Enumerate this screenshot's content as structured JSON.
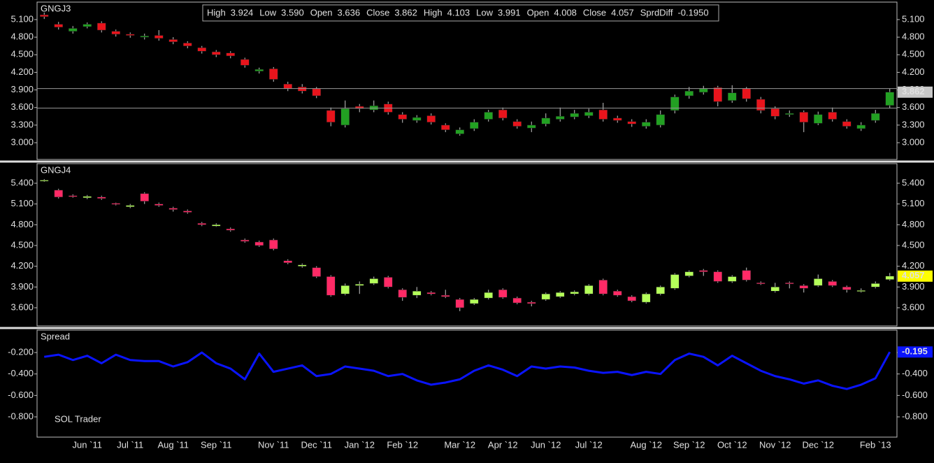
{
  "header": [
    {
      "name": "High",
      "value": 3.924,
      "color": "#d8d8d8"
    },
    {
      "name": "Low",
      "value": {
        "value": 3.59,
        "label": "3.590"
      },
      "color": "#d8d8d8"
    },
    {
      "name": "Open",
      "value": 3.636,
      "color": "#d8d8d8"
    },
    {
      "name": "Close",
      "value": 3.862,
      "color": "#d8d8d8"
    },
    {
      "name": "High",
      "value": 4.103,
      "color": "#ffff33"
    },
    {
      "name": "Low",
      "value": 3.991,
      "color": "#ffff33"
    },
    {
      "name": "Open",
      "value": 4.008,
      "color": "#ffff33"
    },
    {
      "name": "Close",
      "value": 4.057,
      "color": "#ffff33"
    },
    {
      "name": "SprdDiff",
      "value": {
        "value": -0.195,
        "label": "-0.1950"
      },
      "color": "#2233ff"
    }
  ],
  "chart_data": [
    {
      "type": "candlestick",
      "title": "GNGJ3",
      "open": [
        5.18,
        5.02,
        4.9,
        4.98,
        5.04,
        4.9,
        4.85,
        4.8,
        4.83,
        4.76,
        4.7,
        4.62,
        4.55,
        4.53,
        4.42,
        4.22,
        4.26,
        4.0,
        3.95,
        3.92,
        3.55,
        3.3,
        3.62,
        3.56,
        3.66,
        3.48,
        3.38,
        3.46,
        3.3,
        3.15,
        3.24,
        3.4,
        3.56,
        3.36,
        3.25,
        3.32,
        3.4,
        3.44,
        3.46,
        3.56,
        3.42,
        3.36,
        3.28,
        3.3,
        3.55,
        3.8,
        3.86,
        3.94,
        3.72,
        3.92,
        3.74,
        3.58,
        3.48,
        3.52,
        3.33,
        3.52,
        3.36,
        3.24,
        3.38,
        3.636
      ],
      "high": [
        5.22,
        5.06,
        4.99,
        5.05,
        5.07,
        4.93,
        4.88,
        4.86,
        4.92,
        4.8,
        4.73,
        4.65,
        4.58,
        4.56,
        4.45,
        4.28,
        4.29,
        4.04,
        4.0,
        3.95,
        3.6,
        3.72,
        3.66,
        3.72,
        3.7,
        3.52,
        3.47,
        3.5,
        3.33,
        3.26,
        3.4,
        3.56,
        3.6,
        3.4,
        3.36,
        3.5,
        3.6,
        3.56,
        3.58,
        3.68,
        3.46,
        3.4,
        3.4,
        3.55,
        3.82,
        3.95,
        3.97,
        3.97,
        3.98,
        3.95,
        3.78,
        3.62,
        3.55,
        3.55,
        3.53,
        3.6,
        3.4,
        3.35,
        3.56,
        3.924
      ],
      "low": [
        5.11,
        4.93,
        4.86,
        4.95,
        4.88,
        4.81,
        4.79,
        4.76,
        4.74,
        4.68,
        4.61,
        4.52,
        4.46,
        4.44,
        4.28,
        4.18,
        4.04,
        3.88,
        3.84,
        3.76,
        3.28,
        3.26,
        3.52,
        3.52,
        3.48,
        3.34,
        3.34,
        3.31,
        3.18,
        3.12,
        3.2,
        3.36,
        3.38,
        3.24,
        3.18,
        3.28,
        3.36,
        3.4,
        3.42,
        3.36,
        3.34,
        3.27,
        3.24,
        3.26,
        3.5,
        3.75,
        3.82,
        3.62,
        3.68,
        3.7,
        3.5,
        3.4,
        3.44,
        3.18,
        3.3,
        3.36,
        3.24,
        3.2,
        3.34,
        3.59
      ],
      "close": [
        5.15,
        4.97,
        4.95,
        5.02,
        4.92,
        4.85,
        4.83,
        4.82,
        4.78,
        4.72,
        4.65,
        4.56,
        4.5,
        4.48,
        4.32,
        4.25,
        4.08,
        3.92,
        3.88,
        3.8,
        3.35,
        3.58,
        3.58,
        3.63,
        3.52,
        3.4,
        3.43,
        3.35,
        3.22,
        3.22,
        3.35,
        3.52,
        3.42,
        3.28,
        3.3,
        3.42,
        3.45,
        3.5,
        3.52,
        3.4,
        3.38,
        3.32,
        3.35,
        3.48,
        3.78,
        3.88,
        3.92,
        3.7,
        3.85,
        3.75,
        3.55,
        3.45,
        3.5,
        3.35,
        3.48,
        3.4,
        3.28,
        3.3,
        3.5,
        3.862
      ],
      "up_color": "#22a022",
      "down_color": "#e8141c",
      "wick_color": "#c8c8c8",
      "range_lines": true,
      "last_label_fill": "#c8c8c8",
      "last_label_color": "#ff0000",
      "ylim": [
        2.714,
        5.398
      ],
      "yticks": [
        {
          "value": 3.0,
          "label": "3.000"
        },
        {
          "value": 3.3,
          "label": "3.300"
        },
        {
          "value": 3.6,
          "label": "3.600"
        },
        {
          "value": 3.9,
          "label": "3.900"
        },
        {
          "value": 4.2,
          "label": "4.200"
        },
        {
          "value": 4.5,
          "label": "4.500"
        },
        {
          "value": 4.8,
          "label": "4.800"
        },
        {
          "value": 5.1,
          "label": "5.100"
        }
      ]
    },
    {
      "type": "candlestick",
      "title": "GNGJ4",
      "open": [
        5.44,
        5.3,
        5.22,
        5.19,
        5.2,
        5.11,
        5.06,
        5.25,
        5.1,
        5.04,
        5.0,
        4.82,
        4.78,
        4.74,
        4.58,
        4.55,
        4.58,
        4.28,
        4.2,
        4.18,
        4.05,
        3.8,
        3.92,
        3.95,
        4.04,
        3.86,
        3.78,
        3.82,
        3.78,
        3.72,
        3.66,
        3.74,
        3.86,
        3.74,
        3.68,
        3.72,
        3.76,
        3.8,
        3.8,
        4.0,
        3.84,
        3.76,
        3.68,
        3.8,
        3.88,
        4.06,
        4.14,
        4.12,
        3.98,
        4.14,
        3.96,
        3.84,
        3.96,
        3.92,
        3.92,
        3.98,
        3.9,
        3.84,
        3.9,
        4.008
      ],
      "high": [
        5.46,
        5.32,
        5.24,
        5.23,
        5.22,
        5.12,
        5.1,
        5.27,
        5.12,
        5.06,
        5.02,
        4.84,
        4.82,
        4.76,
        4.6,
        4.57,
        4.6,
        4.3,
        4.24,
        4.2,
        4.07,
        3.95,
        3.98,
        4.05,
        4.06,
        3.88,
        3.9,
        3.84,
        3.86,
        3.74,
        3.74,
        3.86,
        3.88,
        3.76,
        3.7,
        3.82,
        3.84,
        3.85,
        3.94,
        4.02,
        3.86,
        3.78,
        3.82,
        3.92,
        4.1,
        4.14,
        4.16,
        4.14,
        4.07,
        4.18,
        3.98,
        3.96,
        3.98,
        3.94,
        4.08,
        4.0,
        3.92,
        3.88,
        3.98,
        4.103
      ],
      "low": [
        5.42,
        5.18,
        5.19,
        5.17,
        5.16,
        5.08,
        5.04,
        5.1,
        5.06,
        4.99,
        4.96,
        4.78,
        4.77,
        4.7,
        4.54,
        4.48,
        4.43,
        4.23,
        4.18,
        4.03,
        3.76,
        3.78,
        3.8,
        3.93,
        3.88,
        3.7,
        3.74,
        3.78,
        3.74,
        3.55,
        3.64,
        3.72,
        3.73,
        3.65,
        3.62,
        3.7,
        3.74,
        3.78,
        3.78,
        3.78,
        3.76,
        3.68,
        3.66,
        3.78,
        3.86,
        4.04,
        4.06,
        3.96,
        3.96,
        3.98,
        3.93,
        3.82,
        3.88,
        3.82,
        3.9,
        3.9,
        3.82,
        3.82,
        3.88,
        3.991
      ],
      "close": [
        5.445,
        5.2,
        5.21,
        5.21,
        5.18,
        5.1,
        5.08,
        5.14,
        5.08,
        5.02,
        4.98,
        4.8,
        4.8,
        4.72,
        4.56,
        4.5,
        4.45,
        4.25,
        4.22,
        4.05,
        3.78,
        3.92,
        3.94,
        4.02,
        3.9,
        3.75,
        3.84,
        3.8,
        3.76,
        3.6,
        3.72,
        3.82,
        3.75,
        3.67,
        3.66,
        3.8,
        3.82,
        3.83,
        3.92,
        3.8,
        3.78,
        3.7,
        3.8,
        3.9,
        4.08,
        4.12,
        4.12,
        3.98,
        4.05,
        4.0,
        3.95,
        3.9,
        3.95,
        3.88,
        4.02,
        3.92,
        3.86,
        3.85,
        3.95,
        4.057
      ],
      "up_color": "#b4ff5a",
      "down_color": "#ff2a66",
      "wick_color": "#c8c8c8",
      "range_lines": false,
      "last_label_fill": "#ffff00",
      "last_label_color": "#cc0000",
      "ylim": [
        3.337,
        5.683
      ],
      "yticks": [
        {
          "value": 3.6,
          "label": "3.600"
        },
        {
          "value": 3.9,
          "label": "3.900"
        },
        {
          "value": 4.2,
          "label": "4.200"
        },
        {
          "value": 4.5,
          "label": "4.500"
        },
        {
          "value": 4.8,
          "label": "4.800"
        },
        {
          "value": 5.1,
          "label": "5.100"
        },
        {
          "value": 5.4,
          "label": "5.400"
        }
      ]
    },
    {
      "type": "line",
      "title": "Spread",
      "color": "#0a14ff",
      "annotation": "SOL Trader",
      "values": [
        -0.24,
        -0.22,
        -0.27,
        -0.23,
        -0.3,
        -0.22,
        -0.27,
        -0.28,
        -0.28,
        -0.33,
        -0.29,
        -0.2,
        -0.3,
        -0.35,
        -0.45,
        -0.21,
        -0.38,
        -0.35,
        -0.32,
        -0.42,
        -0.4,
        -0.33,
        -0.35,
        -0.37,
        -0.42,
        -0.4,
        -0.46,
        -0.5,
        -0.48,
        -0.45,
        -0.37,
        -0.32,
        -0.36,
        -0.42,
        -0.33,
        -0.35,
        -0.33,
        -0.34,
        -0.37,
        -0.39,
        -0.38,
        -0.41,
        -0.38,
        -0.4,
        -0.27,
        -0.21,
        -0.24,
        -0.32,
        -0.23,
        -0.3,
        -0.37,
        -0.42,
        -0.45,
        -0.49,
        -0.46,
        -0.51,
        -0.54,
        -0.5,
        -0.44,
        -0.195
      ],
      "categories": [
        null,
        null,
        null,
        "Jun `11",
        null,
        null,
        "Jul `11",
        null,
        null,
        "Aug `11",
        null,
        null,
        "Sep `11",
        null,
        null,
        null,
        "Nov `11",
        null,
        null,
        "Dec `11",
        null,
        null,
        "Jan `12",
        null,
        null,
        "Feb `12",
        null,
        null,
        null,
        "Mar `12",
        null,
        null,
        "Apr `12",
        null,
        null,
        "Jun `12",
        null,
        null,
        "Jul `12",
        null,
        null,
        null,
        "Aug `12",
        null,
        null,
        "Sep `12",
        null,
        null,
        "Oct `12",
        null,
        null,
        "Nov `12",
        null,
        null,
        "Dec `12",
        null,
        null,
        null,
        "Feb `13",
        null
      ],
      "last_label_fill": "#0a14ff",
      "last_label_color": "#ffffff",
      "ylim": [
        -0.989,
        0.009
      ],
      "yticks": [
        {
          "value": -0.8,
          "label": "-0.800"
        },
        {
          "value": -0.6,
          "label": "-0.600"
        },
        {
          "value": -0.4,
          "label": "-0.400"
        },
        {
          "value": -0.2,
          "label": "-0.200"
        }
      ]
    }
  ]
}
